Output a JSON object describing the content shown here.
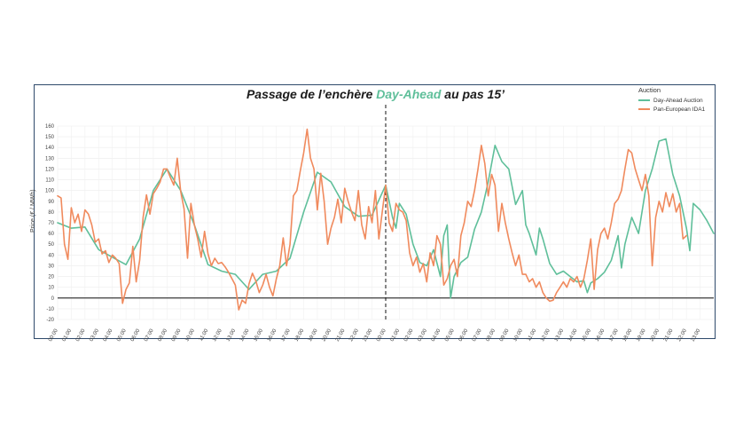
{
  "title": {
    "before": "Passage de l’enchère ",
    "highlight": "Day-Ahead",
    "after": " au pas 15’"
  },
  "legend": {
    "title": "Auction",
    "items": [
      {
        "label": "Day-Ahead Auction",
        "color": "#5fbf9a"
      },
      {
        "label": "Pan-European IDA1",
        "color": "#f08a5d"
      }
    ]
  },
  "chart_data": {
    "type": "line",
    "ylabel": "Price (€ / MWh)",
    "ylim": [
      -20,
      160
    ],
    "yticks": [
      -20,
      -10,
      0,
      10,
      20,
      30,
      40,
      50,
      60,
      70,
      80,
      90,
      100,
      110,
      120,
      130,
      140,
      150,
      160
    ],
    "xlim": [
      0,
      48
    ],
    "xticks": [
      "00:00",
      "01:00",
      "02:00",
      "03:00",
      "04:00",
      "05:00",
      "06:00",
      "07:00",
      "08:00",
      "09:00",
      "10:00",
      "11:00",
      "12:00",
      "13:00",
      "14:00",
      "15:00",
      "16:00",
      "17:00",
      "18:00",
      "19:00",
      "20:00",
      "21:00",
      "22:00",
      "23:00",
      "00:00",
      "01:00",
      "02:00",
      "03:00",
      "04:00",
      "05:00",
      "06:00",
      "07:00",
      "08:00",
      "09:00",
      "10:00",
      "11:00",
      "12:00",
      "13:00",
      "14:00",
      "15:00",
      "16:00",
      "17:00",
      "18:00",
      "19:00",
      "20:00",
      "21:00",
      "22:00",
      "23:00"
    ],
    "divider_x": 24,
    "zero_line": 0,
    "grid": true,
    "legend_position": "top-right",
    "series": [
      {
        "name": "Day-Ahead Auction",
        "color": "#5fbf9a",
        "points": [
          [
            0,
            70
          ],
          [
            1,
            65
          ],
          [
            2,
            66
          ],
          [
            3,
            45
          ],
          [
            4,
            38
          ],
          [
            5,
            31
          ],
          [
            6,
            55
          ],
          [
            7,
            100
          ],
          [
            8,
            120
          ],
          [
            9,
            100
          ],
          [
            10,
            68
          ],
          [
            11,
            31
          ],
          [
            12,
            25
          ],
          [
            13,
            22
          ],
          [
            14,
            8
          ],
          [
            15,
            22
          ],
          [
            16,
            25
          ],
          [
            17,
            37
          ],
          [
            18,
            80
          ],
          [
            19,
            117
          ],
          [
            20,
            108
          ],
          [
            21,
            85
          ],
          [
            22,
            76
          ],
          [
            23,
            77
          ],
          [
            24,
            105
          ],
          [
            24.25,
            90
          ],
          [
            24.5,
            75
          ],
          [
            24.75,
            65
          ],
          [
            25,
            88
          ],
          [
            25.5,
            78
          ],
          [
            26,
            50
          ],
          [
            26.5,
            33
          ],
          [
            27,
            30
          ],
          [
            27.5,
            45
          ],
          [
            28,
            20
          ],
          [
            28.25,
            58
          ],
          [
            28.5,
            68
          ],
          [
            28.75,
            0
          ],
          [
            29,
            20
          ],
          [
            29.5,
            33
          ],
          [
            30,
            38
          ],
          [
            30.5,
            64
          ],
          [
            31,
            80
          ],
          [
            31.5,
            108
          ],
          [
            32,
            142
          ],
          [
            32.5,
            127
          ],
          [
            33,
            120
          ],
          [
            33.5,
            87
          ],
          [
            34,
            100
          ],
          [
            34.25,
            68
          ],
          [
            34.5,
            60
          ],
          [
            35,
            40
          ],
          [
            35.25,
            65
          ],
          [
            35.5,
            55
          ],
          [
            36,
            32
          ],
          [
            36.5,
            22
          ],
          [
            37,
            25
          ],
          [
            37.5,
            20
          ],
          [
            38,
            15
          ],
          [
            38.5,
            16
          ],
          [
            38.75,
            5
          ],
          [
            39,
            14
          ],
          [
            39.5,
            18
          ],
          [
            40,
            24
          ],
          [
            40.5,
            35
          ],
          [
            41,
            58
          ],
          [
            41.25,
            28
          ],
          [
            41.5,
            50
          ],
          [
            42,
            75
          ],
          [
            42.5,
            60
          ],
          [
            43,
            100
          ],
          [
            43.5,
            120
          ],
          [
            44,
            146
          ],
          [
            44.5,
            148
          ],
          [
            45,
            115
          ],
          [
            45.5,
            95
          ],
          [
            46,
            65
          ],
          [
            46.25,
            44
          ],
          [
            46.5,
            88
          ],
          [
            47,
            82
          ],
          [
            47.5,
            72
          ],
          [
            48,
            60
          ]
        ]
      },
      {
        "name": "Pan-European IDA1",
        "color": "#f08a5d",
        "points": [
          [
            0,
            95
          ],
          [
            0.25,
            93
          ],
          [
            0.5,
            50
          ],
          [
            0.75,
            36
          ],
          [
            1,
            84
          ],
          [
            1.25,
            70
          ],
          [
            1.5,
            78
          ],
          [
            1.75,
            62
          ],
          [
            2,
            82
          ],
          [
            2.25,
            78
          ],
          [
            2.5,
            68
          ],
          [
            2.75,
            52
          ],
          [
            3,
            55
          ],
          [
            3.25,
            41
          ],
          [
            3.5,
            44
          ],
          [
            3.75,
            33
          ],
          [
            4,
            40
          ],
          [
            4.25,
            37
          ],
          [
            4.5,
            32
          ],
          [
            4.75,
            -5
          ],
          [
            5,
            8
          ],
          [
            5.25,
            14
          ],
          [
            5.5,
            48
          ],
          [
            5.75,
            15
          ],
          [
            6,
            35
          ],
          [
            6.25,
            75
          ],
          [
            6.5,
            96
          ],
          [
            6.75,
            78
          ],
          [
            7,
            97
          ],
          [
            7.25,
            102
          ],
          [
            7.5,
            108
          ],
          [
            7.75,
            120
          ],
          [
            8,
            120
          ],
          [
            8.25,
            112
          ],
          [
            8.5,
            105
          ],
          [
            8.75,
            130
          ],
          [
            9,
            99
          ],
          [
            9.25,
            83
          ],
          [
            9.5,
            37
          ],
          [
            9.75,
            88
          ],
          [
            10,
            68
          ],
          [
            10.25,
            55
          ],
          [
            10.5,
            38
          ],
          [
            10.75,
            62
          ],
          [
            11,
            41
          ],
          [
            11.25,
            30
          ],
          [
            11.5,
            37
          ],
          [
            11.75,
            32
          ],
          [
            12,
            33
          ],
          [
            12.25,
            29
          ],
          [
            12.5,
            24
          ],
          [
            12.75,
            18
          ],
          [
            13,
            12
          ],
          [
            13.25,
            -11
          ],
          [
            13.5,
            -2
          ],
          [
            13.75,
            -5
          ],
          [
            14,
            13
          ],
          [
            14.25,
            23
          ],
          [
            14.5,
            16
          ],
          [
            14.75,
            5
          ],
          [
            15,
            12
          ],
          [
            15.25,
            22
          ],
          [
            15.5,
            10
          ],
          [
            15.75,
            2
          ],
          [
            16,
            18
          ],
          [
            16.25,
            30
          ],
          [
            16.5,
            56
          ],
          [
            16.75,
            30
          ],
          [
            17,
            50
          ],
          [
            17.25,
            95
          ],
          [
            17.5,
            100
          ],
          [
            17.75,
            118
          ],
          [
            18,
            135
          ],
          [
            18.25,
            157
          ],
          [
            18.5,
            130
          ],
          [
            18.75,
            120
          ],
          [
            19,
            82
          ],
          [
            19.25,
            116
          ],
          [
            19.5,
            90
          ],
          [
            19.75,
            50
          ],
          [
            20,
            65
          ],
          [
            20.25,
            75
          ],
          [
            20.5,
            92
          ],
          [
            20.75,
            70
          ],
          [
            21,
            102
          ],
          [
            21.25,
            90
          ],
          [
            21.5,
            80
          ],
          [
            21.75,
            72
          ],
          [
            22,
            100
          ],
          [
            22.25,
            68
          ],
          [
            22.5,
            55
          ],
          [
            22.75,
            85
          ],
          [
            23,
            70
          ],
          [
            23.25,
            100
          ],
          [
            23.5,
            55
          ],
          [
            23.75,
            80
          ],
          [
            24,
            105
          ],
          [
            24.25,
            70
          ],
          [
            24.5,
            62
          ],
          [
            24.75,
            88
          ],
          [
            25,
            82
          ],
          [
            25.25,
            80
          ],
          [
            25.5,
            72
          ],
          [
            25.75,
            42
          ],
          [
            26,
            30
          ],
          [
            26.25,
            38
          ],
          [
            26.5,
            24
          ],
          [
            26.75,
            32
          ],
          [
            27,
            15
          ],
          [
            27.25,
            42
          ],
          [
            27.5,
            30
          ],
          [
            27.75,
            58
          ],
          [
            28,
            50
          ],
          [
            28.25,
            12
          ],
          [
            28.5,
            18
          ],
          [
            28.75,
            30
          ],
          [
            29,
            36
          ],
          [
            29.25,
            20
          ],
          [
            29.5,
            58
          ],
          [
            29.75,
            70
          ],
          [
            30,
            90
          ],
          [
            30.25,
            85
          ],
          [
            30.5,
            100
          ],
          [
            30.75,
            120
          ],
          [
            31,
            142
          ],
          [
            31.25,
            125
          ],
          [
            31.5,
            95
          ],
          [
            31.75,
            115
          ],
          [
            32,
            105
          ],
          [
            32.25,
            62
          ],
          [
            32.5,
            88
          ],
          [
            32.75,
            70
          ],
          [
            33,
            55
          ],
          [
            33.25,
            42
          ],
          [
            33.5,
            30
          ],
          [
            33.75,
            40
          ],
          [
            34,
            22
          ],
          [
            34.25,
            22
          ],
          [
            34.5,
            15
          ],
          [
            34.75,
            18
          ],
          [
            35,
            10
          ],
          [
            35.25,
            15
          ],
          [
            35.5,
            5
          ],
          [
            35.75,
            0
          ],
          [
            36,
            -3
          ],
          [
            36.25,
            -2
          ],
          [
            36.5,
            5
          ],
          [
            36.75,
            10
          ],
          [
            37,
            15
          ],
          [
            37.25,
            10
          ],
          [
            37.5,
            18
          ],
          [
            37.75,
            15
          ],
          [
            38,
            20
          ],
          [
            38.25,
            10
          ],
          [
            38.5,
            18
          ],
          [
            38.75,
            35
          ],
          [
            39,
            55
          ],
          [
            39.25,
            8
          ],
          [
            39.5,
            45
          ],
          [
            39.75,
            60
          ],
          [
            40,
            65
          ],
          [
            40.25,
            55
          ],
          [
            40.5,
            70
          ],
          [
            40.75,
            88
          ],
          [
            41,
            92
          ],
          [
            41.25,
            100
          ],
          [
            41.5,
            120
          ],
          [
            41.75,
            138
          ],
          [
            42,
            135
          ],
          [
            42.25,
            120
          ],
          [
            42.5,
            110
          ],
          [
            42.75,
            100
          ],
          [
            43,
            115
          ],
          [
            43.25,
            95
          ],
          [
            43.5,
            30
          ],
          [
            43.75,
            75
          ],
          [
            44,
            90
          ],
          [
            44.25,
            80
          ],
          [
            44.5,
            98
          ],
          [
            44.75,
            85
          ],
          [
            45,
            97
          ],
          [
            45.25,
            80
          ],
          [
            45.5,
            88
          ],
          [
            45.75,
            55
          ],
          [
            46,
            58
          ]
        ]
      }
    ]
  }
}
